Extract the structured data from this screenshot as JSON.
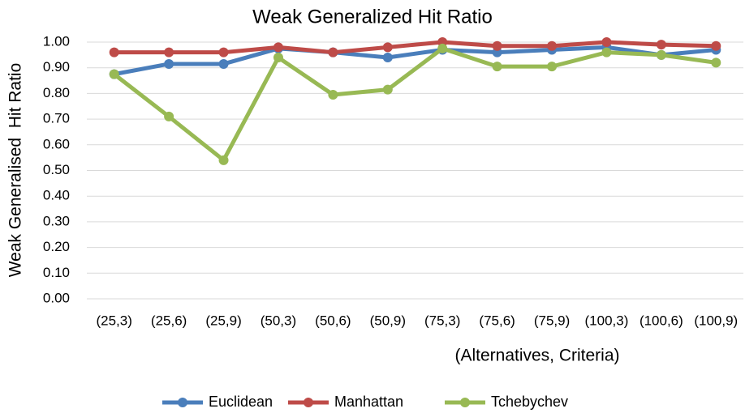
{
  "chart_data": {
    "type": "line",
    "title": "Weak Generalized Hit Ratio",
    "y_label": "Weak Generalised  Hit Ratio",
    "x_label": "(Alternatives, Criteria)",
    "categories": [
      "(25,3)",
      "(25,6)",
      "(25,9)",
      "(50,3)",
      "(50,6)",
      "(50,9)",
      "(75,3)",
      "(75,6)",
      "(75,9)",
      "(100,3)",
      "(100,6)",
      "(100,9)"
    ],
    "series": [
      {
        "name": "Euclidean",
        "color": "#4a7ebb",
        "values": [
          0.875,
          0.915,
          0.915,
          0.975,
          0.96,
          0.94,
          0.97,
          0.96,
          0.97,
          0.98,
          0.95,
          0.97
        ]
      },
      {
        "name": "Manhattan",
        "color": "#be4b48",
        "values": [
          0.96,
          0.96,
          0.96,
          0.98,
          0.96,
          0.98,
          1.0,
          0.985,
          0.985,
          1.0,
          0.99,
          0.985
        ]
      },
      {
        "name": "Tchebychev",
        "color": "#98b954",
        "values": [
          0.875,
          0.71,
          0.54,
          0.94,
          0.795,
          0.815,
          0.975,
          0.905,
          0.905,
          0.96,
          0.95,
          0.92
        ]
      }
    ],
    "ylim": [
      0,
      1
    ],
    "yticks": [
      {
        "value": 0,
        "label": "0.00"
      },
      {
        "value": 0.1,
        "label": "0.10"
      },
      {
        "value": 0.2,
        "label": "0.20"
      },
      {
        "value": 0.3,
        "label": "0.30"
      },
      {
        "value": 0.4,
        "label": "0.40"
      },
      {
        "value": 0.5,
        "label": "0.50"
      },
      {
        "value": 0.6,
        "label": "0.60"
      },
      {
        "value": 0.7,
        "label": "0.70"
      },
      {
        "value": 0.8,
        "label": "0.80"
      },
      {
        "value": 0.9,
        "label": "0.90"
      },
      {
        "value": 1,
        "label": "1.00"
      }
    ],
    "grid": true,
    "legend": "bottom"
  }
}
